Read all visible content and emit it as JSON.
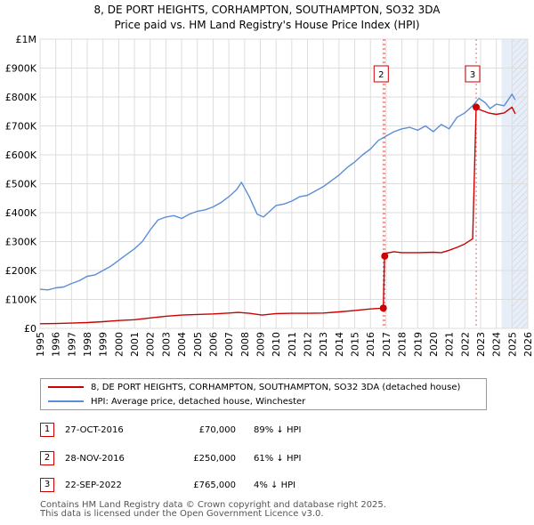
{
  "title_line1": "8, DE PORT HEIGHTS, CORHAMPTON, SOUTHAMPTON, SO32 3DA",
  "title_line2": "Price paid vs. HM Land Registry's House Price Index (HPI)",
  "chart_data": {
    "type": "line",
    "xlim": [
      1995,
      2026
    ],
    "ylim": [
      0,
      1000000
    ],
    "x_ticks": [
      1995,
      1996,
      1997,
      1998,
      1999,
      2000,
      2001,
      2002,
      2003,
      2004,
      2005,
      2006,
      2007,
      2008,
      2009,
      2010,
      2011,
      2012,
      2013,
      2014,
      2015,
      2016,
      2017,
      2018,
      2019,
      2020,
      2021,
      2022,
      2023,
      2024,
      2025,
      2026
    ],
    "y_ticks": [
      0,
      100000,
      200000,
      300000,
      400000,
      500000,
      600000,
      700000,
      800000,
      900000,
      1000000
    ],
    "y_tick_labels": [
      "£0",
      "£100K",
      "£200K",
      "£300K",
      "£400K",
      "£500K",
      "£600K",
      "£700K",
      "£800K",
      "£900K",
      "£1M"
    ],
    "grid": true,
    "forecast_shading_from": 2024.33,
    "hatched_from": 2025.0,
    "series": [
      {
        "name": "8, DE PORT HEIGHTS, CORHAMPTON, SOUTHAMPTON, SO32 3DA (detached house)",
        "color": "#cc0000",
        "x": [
          1995.0,
          1996.0,
          1997.0,
          1998.0,
          1999.0,
          2000.0,
          2001.0,
          2002.0,
          2003.0,
          2004.0,
          2005.0,
          2006.0,
          2007.0,
          2007.6,
          2008.3,
          2009.1,
          2010.0,
          2011.0,
          2012.0,
          2013.0,
          2014.0,
          2015.0,
          2016.0,
          2016.82,
          2016.9,
          2017.0,
          2017.5,
          2018.0,
          2019.0,
          2020.0,
          2020.5,
          2021.0,
          2021.5,
          2022.0,
          2022.5,
          2022.72,
          2022.8,
          2023.0,
          2023.5,
          2024.0,
          2024.5,
          2025.0,
          2025.2
        ],
        "values": [
          16000,
          16500,
          18000,
          20000,
          23000,
          27000,
          30000,
          36000,
          42000,
          46000,
          48000,
          50000,
          53000,
          55000,
          52000,
          46000,
          51000,
          52000,
          52000,
          53000,
          57000,
          62000,
          67000,
          70000,
          250000,
          260000,
          265000,
          262000,
          262000,
          263000,
          262000,
          270000,
          280000,
          292000,
          310000,
          765000,
          760000,
          755000,
          745000,
          740000,
          745000,
          765000,
          742000
        ]
      },
      {
        "name": "HPI: Average price, detached house, Winchester",
        "color": "#5b8ed6",
        "x": [
          1995.0,
          1995.5,
          1996.0,
          1996.5,
          1997.0,
          1997.5,
          1998.0,
          1998.5,
          1999.0,
          1999.5,
          2000.0,
          2000.5,
          2001.0,
          2001.5,
          2002.0,
          2002.5,
          2003.0,
          2003.5,
          2004.0,
          2004.5,
          2005.0,
          2005.5,
          2006.0,
          2006.5,
          2007.0,
          2007.5,
          2007.8,
          2008.3,
          2008.8,
          2009.2,
          2009.6,
          2010.0,
          2010.5,
          2011.0,
          2011.5,
          2012.0,
          2012.5,
          2013.0,
          2013.5,
          2014.0,
          2014.5,
          2015.0,
          2015.5,
          2016.0,
          2016.5,
          2017.0,
          2017.5,
          2018.0,
          2018.5,
          2019.0,
          2019.5,
          2020.0,
          2020.5,
          2021.0,
          2021.5,
          2022.0,
          2022.5,
          2022.9,
          2023.3,
          2023.6,
          2024.0,
          2024.5,
          2025.0,
          2025.2
        ],
        "values": [
          135000,
          133000,
          140000,
          143000,
          155000,
          165000,
          180000,
          185000,
          200000,
          215000,
          235000,
          255000,
          275000,
          300000,
          340000,
          375000,
          385000,
          390000,
          380000,
          395000,
          405000,
          410000,
          420000,
          435000,
          455000,
          480000,
          505000,
          455000,
          395000,
          385000,
          405000,
          425000,
          430000,
          440000,
          455000,
          460000,
          475000,
          490000,
          510000,
          530000,
          555000,
          575000,
          600000,
          620000,
          650000,
          665000,
          680000,
          690000,
          695000,
          685000,
          700000,
          680000,
          705000,
          690000,
          730000,
          745000,
          770000,
          795000,
          780000,
          760000,
          775000,
          770000,
          810000,
          790000
        ]
      }
    ],
    "events": [
      {
        "label": "1",
        "x": 2016.82,
        "value": 70000
      },
      {
        "label": "2",
        "x": 2016.91,
        "value": 250000
      },
      {
        "label": "3",
        "x": 2022.72,
        "value": 765000
      }
    ]
  },
  "legend": {
    "red_label": "8, DE PORT HEIGHTS, CORHAMPTON, SOUTHAMPTON, SO32 3DA (detached house)",
    "blue_label": "HPI: Average price, detached house, Winchester"
  },
  "transactions": [
    {
      "num": "1",
      "date": "27-OCT-2016",
      "price": "£70,000",
      "hpi": "89% ↓ HPI"
    },
    {
      "num": "2",
      "date": "28-NOV-2016",
      "price": "£250,000",
      "hpi": "61% ↓ HPI"
    },
    {
      "num": "3",
      "date": "22-SEP-2022",
      "price": "£765,000",
      "hpi": "4% ↓ HPI"
    }
  ],
  "footer": {
    "line1": "Contains HM Land Registry data © Crown copyright and database right 2025.",
    "line2": "This data is licensed under the Open Government Licence v3.0."
  }
}
